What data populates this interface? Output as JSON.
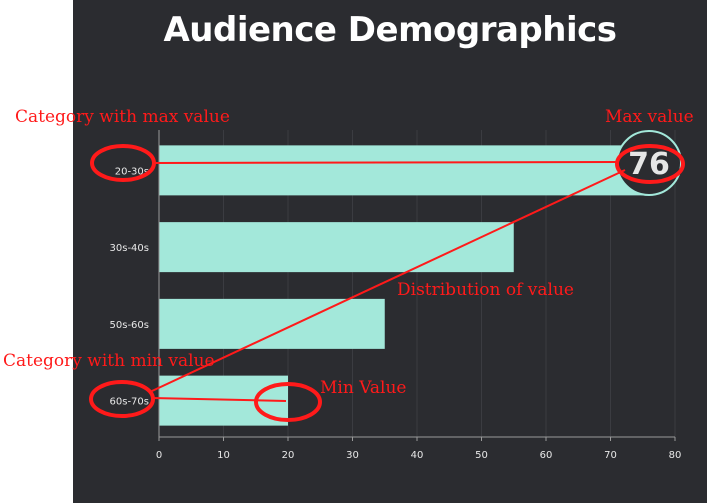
{
  "chart_data": {
    "type": "bar",
    "orientation": "horizontal",
    "title": "Audience Demographics",
    "categories": [
      "20-30s",
      "30s-40s",
      "50s-60s",
      "60s-70s"
    ],
    "values": [
      76,
      55,
      35,
      20
    ],
    "xlim": [
      0,
      80
    ],
    "xticks": [
      0,
      10,
      20,
      30,
      40,
      50,
      60,
      70,
      80
    ],
    "grid": "vertical",
    "max_label": "76",
    "bar_color": "#a3e8da",
    "background_color": "#2b2c30",
    "annotations": {
      "category_max": "Category with max value",
      "max_value": "Max value",
      "distribution": "Distribution of value",
      "category_min": "Category with min value",
      "min_value": "Min Value",
      "color": "#ff1a1a"
    }
  }
}
